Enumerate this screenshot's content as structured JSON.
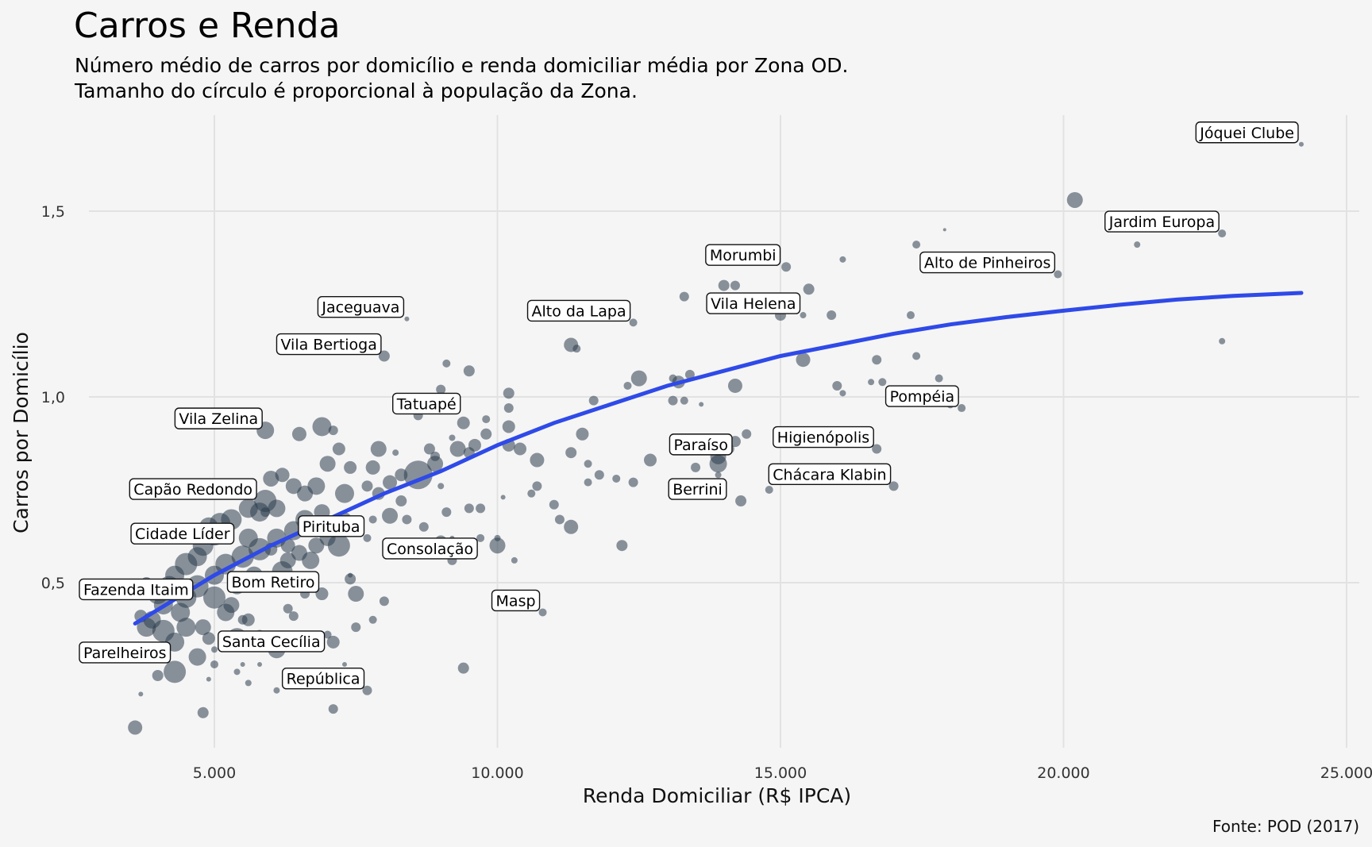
{
  "title": "Carros e Renda",
  "subtitle_line1": "Número médio de carros por domicílio e renda domiciliar média por Zona OD.",
  "subtitle_line2": "Tamanho do círculo é proporcional à população da Zona.",
  "caption": "Fonte: POD (2017)",
  "colors": {
    "points": "#2b3d4d",
    "trend": "#2f4ae8",
    "background": "#f5f5f5",
    "grid": "#e2e2e2"
  },
  "chart_data": {
    "type": "scatter",
    "title": "Carros e Renda",
    "xlabel": "Renda Domiciliar (R$ IPCA)",
    "ylabel": "Carros por Domicílio",
    "xlim": [
      2500,
      25200
    ],
    "ylim": [
      0.05,
      1.75
    ],
    "x_ticks": [
      5000,
      10000,
      15000,
      20000,
      25000
    ],
    "x_tick_labels": [
      "5.000",
      "10.000",
      "15.000",
      "20.000",
      "25.000"
    ],
    "y_ticks": [
      0.5,
      1.0,
      1.5
    ],
    "y_tick_labels": [
      "0,5",
      "1,0",
      "1,5"
    ],
    "grid": true,
    "size_encoding": "população da Zona",
    "labels": [
      {
        "text": "Jóquei Clube",
        "x": 24200,
        "y": 1.68
      },
      {
        "text": "Jardim Europa",
        "x": 22800,
        "y": 1.44
      },
      {
        "text": "Alto de Pinheiros",
        "x": 19900,
        "y": 1.33
      },
      {
        "text": "Morumbi",
        "x": 15050,
        "y": 1.35
      },
      {
        "text": "Vila Helena",
        "x": 15400,
        "y": 1.22
      },
      {
        "text": "Alto da Lapa",
        "x": 12400,
        "y": 1.2
      },
      {
        "text": "Jaceguava",
        "x": 8400,
        "y": 1.21
      },
      {
        "text": "Vila Bertioga",
        "x": 8000,
        "y": 1.11
      },
      {
        "text": "Pompéia",
        "x": 18200,
        "y": 0.97
      },
      {
        "text": "Tatuapé",
        "x": 9400,
        "y": 0.95
      },
      {
        "text": "Vila Zelina",
        "x": 5900,
        "y": 0.91
      },
      {
        "text": "Paraíso",
        "x": 14200,
        "y": 0.84
      },
      {
        "text": "Higienópolis",
        "x": 16700,
        "y": 0.86
      },
      {
        "text": "Chácara Klabin",
        "x": 17000,
        "y": 0.76
      },
      {
        "text": "Capão Redondo",
        "x": 5800,
        "y": 0.72
      },
      {
        "text": "Berrini",
        "x": 14100,
        "y": 0.72
      },
      {
        "text": "Cidade Líder",
        "x": 5400,
        "y": 0.6
      },
      {
        "text": "Pirituba",
        "x": 7700,
        "y": 0.62
      },
      {
        "text": "Consolação",
        "x": 9700,
        "y": 0.56
      },
      {
        "text": "Bom Retiro",
        "x": 6900,
        "y": 0.47
      },
      {
        "text": "Fazenda Itaim",
        "x": 4600,
        "y": 0.45
      },
      {
        "text": "Masp",
        "x": 10800,
        "y": 0.42
      },
      {
        "text": "Parelheiros",
        "x": 4000,
        "y": 0.28
      },
      {
        "text": "Santa Cecília",
        "x": 7000,
        "y": 0.31
      },
      {
        "text": "República",
        "x": 7700,
        "y": 0.21
      }
    ],
    "points": [
      [
        24200,
        1.68,
        3
      ],
      [
        22800,
        1.44,
        5
      ],
      [
        22800,
        1.15,
        4
      ],
      [
        21300,
        1.41,
        4
      ],
      [
        21200,
        1.47,
        2
      ],
      [
        20200,
        1.53,
        10
      ],
      [
        19900,
        1.33,
        5
      ],
      [
        19100,
        1.36,
        3
      ],
      [
        17900,
        1.45,
        2
      ],
      [
        17400,
        1.41,
        5
      ],
      [
        17400,
        1.11,
        5
      ],
      [
        17800,
        1.05,
        5
      ],
      [
        18000,
        0.98,
        5
      ],
      [
        18200,
        0.97,
        5
      ],
      [
        17300,
        1.22,
        5
      ],
      [
        16700,
        1.1,
        6
      ],
      [
        16800,
        1.04,
        5
      ],
      [
        16600,
        1.04,
        4
      ],
      [
        16000,
        1.03,
        6
      ],
      [
        16100,
        1.01,
        4
      ],
      [
        16700,
        0.86,
        6
      ],
      [
        17000,
        0.76,
        6
      ],
      [
        16100,
        1.37,
        4
      ],
      [
        15500,
        1.29,
        7
      ],
      [
        15100,
        1.35,
        6
      ],
      [
        15000,
        1.22,
        7
      ],
      [
        15400,
        1.22,
        4
      ],
      [
        15900,
        1.22,
        6
      ],
      [
        15400,
        1.1,
        9
      ],
      [
        14200,
        1.3,
        6
      ],
      [
        14000,
        1.3,
        7
      ],
      [
        14200,
        1.03,
        9
      ],
      [
        14400,
        0.9,
        6
      ],
      [
        14200,
        0.88,
        7
      ],
      [
        14100,
        0.86,
        6
      ],
      [
        13900,
        0.84,
        10
      ],
      [
        13900,
        0.82,
        11
      ],
      [
        14300,
        0.72,
        7
      ],
      [
        14800,
        0.75,
        5
      ],
      [
        13900,
        0.79,
        4
      ],
      [
        13500,
        0.81,
        6
      ],
      [
        13300,
        1.27,
        6
      ],
      [
        13400,
        1.06,
        6
      ],
      [
        13100,
        1.05,
        5
      ],
      [
        13200,
        1.04,
        8
      ],
      [
        13300,
        0.99,
        5
      ],
      [
        13100,
        0.99,
        6
      ],
      [
        13600,
        0.98,
        3
      ],
      [
        12500,
        1.05,
        10
      ],
      [
        12300,
        1.03,
        5
      ],
      [
        12400,
        1.2,
        5
      ],
      [
        12700,
        0.83,
        8
      ],
      [
        12400,
        0.77,
        6
      ],
      [
        12100,
        0.78,
        5
      ],
      [
        11800,
        0.79,
        6
      ],
      [
        11700,
        0.99,
        6
      ],
      [
        11300,
        1.14,
        9
      ],
      [
        11400,
        1.13,
        5
      ],
      [
        11500,
        0.9,
        8
      ],
      [
        11300,
        0.85,
        7
      ],
      [
        11600,
        0.82,
        5
      ],
      [
        11000,
        0.71,
        6
      ],
      [
        11100,
        0.67,
        6
      ],
      [
        11300,
        0.65,
        9
      ],
      [
        11600,
        0.77,
        5
      ],
      [
        12200,
        0.6,
        7
      ],
      [
        10800,
        0.42,
        5
      ],
      [
        10700,
        0.83,
        9
      ],
      [
        10400,
        0.86,
        8
      ],
      [
        10700,
        0.76,
        6
      ],
      [
        10600,
        0.74,
        5
      ],
      [
        10200,
        1.01,
        7
      ],
      [
        10200,
        0.97,
        6
      ],
      [
        10200,
        0.92,
        8
      ],
      [
        10200,
        0.87,
        8
      ],
      [
        9800,
        0.9,
        7
      ],
      [
        9800,
        0.94,
        5
      ],
      [
        9500,
        1.07,
        7
      ],
      [
        9600,
        0.87,
        8
      ],
      [
        9500,
        0.85,
        7
      ],
      [
        9400,
        0.93,
        8
      ],
      [
        9300,
        0.86,
        10
      ],
      [
        9200,
        0.89,
        4
      ],
      [
        9100,
        1.09,
        5
      ],
      [
        9000,
        1.02,
        6
      ],
      [
        8900,
        0.82,
        10
      ],
      [
        8900,
        0.84,
        6
      ],
      [
        8800,
        0.86,
        7
      ],
      [
        8600,
        0.79,
        18
      ],
      [
        8600,
        0.95,
        6
      ],
      [
        8400,
        1.21,
        3
      ],
      [
        8300,
        0.79,
        8
      ],
      [
        8300,
        0.72,
        7
      ],
      [
        8100,
        0.77,
        9
      ],
      [
        8100,
        0.68,
        10
      ],
      [
        8000,
        1.11,
        7
      ],
      [
        7900,
        0.86,
        10
      ],
      [
        7900,
        0.74,
        8
      ],
      [
        7800,
        0.67,
        5
      ],
      [
        7700,
        0.62,
        5
      ],
      [
        8400,
        0.67,
        6
      ],
      [
        8700,
        0.65,
        6
      ],
      [
        9000,
        0.61,
        8
      ],
      [
        9100,
        0.69,
        6
      ],
      [
        9200,
        0.62,
        3
      ],
      [
        9200,
        0.56,
        6
      ],
      [
        9500,
        0.7,
        6
      ],
      [
        9700,
        0.7,
        6
      ],
      [
        9700,
        0.62,
        5
      ],
      [
        10000,
        0.6,
        10
      ],
      [
        10000,
        0.62,
        4
      ],
      [
        10300,
        0.56,
        4
      ],
      [
        10100,
        0.73,
        3
      ],
      [
        9400,
        0.27,
        7
      ],
      [
        7700,
        0.21,
        6
      ],
      [
        7100,
        0.16,
        6
      ],
      [
        7500,
        0.38,
        6
      ],
      [
        7800,
        0.4,
        5
      ],
      [
        8000,
        0.45,
        6
      ],
      [
        7500,
        0.47,
        10
      ],
      [
        7400,
        0.51,
        7
      ],
      [
        7200,
        0.6,
        14
      ],
      [
        7000,
        0.62,
        10
      ],
      [
        7100,
        0.34,
        8
      ],
      [
        7000,
        0.36,
        5
      ],
      [
        6900,
        0.47,
        8
      ],
      [
        6600,
        0.47,
        6
      ],
      [
        6400,
        0.41,
        6
      ],
      [
        6300,
        0.43,
        6
      ],
      [
        6100,
        0.49,
        5
      ],
      [
        6500,
        0.33,
        5
      ],
      [
        6100,
        0.32,
        11
      ],
      [
        6400,
        0.34,
        6
      ],
      [
        6100,
        0.21,
        4
      ],
      [
        5800,
        0.28,
        3
      ],
      [
        5800,
        0.36,
        6
      ],
      [
        5600,
        0.4,
        8
      ],
      [
        5900,
        0.91,
        11
      ],
      [
        6500,
        0.9,
        9
      ],
      [
        6900,
        0.92,
        12
      ],
      [
        7100,
        0.91,
        6
      ],
      [
        7200,
        0.86,
        8
      ],
      [
        7000,
        0.82,
        10
      ],
      [
        7400,
        0.81,
        8
      ],
      [
        7800,
        0.81,
        9
      ],
      [
        7700,
        0.76,
        7
      ],
      [
        7300,
        0.74,
        12
      ],
      [
        6800,
        0.76,
        11
      ],
      [
        6600,
        0.74,
        10
      ],
      [
        6400,
        0.76,
        10
      ],
      [
        6200,
        0.79,
        9
      ],
      [
        6000,
        0.78,
        10
      ],
      [
        5900,
        0.72,
        14
      ],
      [
        5600,
        0.7,
        12
      ],
      [
        5300,
        0.67,
        13
      ],
      [
        5100,
        0.66,
        13
      ],
      [
        5000,
        0.63,
        14
      ],
      [
        4900,
        0.65,
        12
      ],
      [
        4800,
        0.6,
        13
      ],
      [
        4700,
        0.57,
        12
      ],
      [
        4500,
        0.55,
        14
      ],
      [
        4300,
        0.52,
        12
      ],
      [
        4200,
        0.49,
        13
      ],
      [
        4000,
        0.47,
        13
      ],
      [
        4100,
        0.44,
        12
      ],
      [
        3900,
        0.4,
        11
      ],
      [
        3800,
        0.38,
        12
      ],
      [
        3700,
        0.41,
        8
      ],
      [
        3800,
        0.5,
        7
      ],
      [
        4100,
        0.37,
        14
      ],
      [
        4300,
        0.34,
        12
      ],
      [
        4500,
        0.38,
        12
      ],
      [
        4700,
        0.3,
        11
      ],
      [
        4800,
        0.38,
        10
      ],
      [
        4900,
        0.35,
        8
      ],
      [
        4300,
        0.26,
        14
      ],
      [
        4000,
        0.25,
        7
      ],
      [
        3600,
        0.11,
        9
      ],
      [
        3700,
        0.2,
        3
      ],
      [
        4800,
        0.15,
        7
      ],
      [
        5000,
        0.28,
        5
      ],
      [
        5000,
        0.32,
        4
      ],
      [
        5300,
        0.44,
        10
      ],
      [
        5400,
        0.49,
        10
      ],
      [
        5400,
        0.35,
        13
      ],
      [
        5500,
        0.4,
        6
      ],
      [
        5300,
        0.33,
        5
      ],
      [
        5400,
        0.26,
        4
      ],
      [
        5600,
        0.23,
        4
      ],
      [
        5700,
        0.52,
        11
      ],
      [
        6000,
        0.5,
        12
      ],
      [
        6200,
        0.53,
        13
      ],
      [
        6300,
        0.56,
        10
      ],
      [
        6500,
        0.58,
        10
      ],
      [
        6700,
        0.56,
        11
      ],
      [
        6800,
        0.6,
        10
      ],
      [
        6400,
        0.64,
        12
      ],
      [
        6100,
        0.62,
        12
      ],
      [
        5800,
        0.59,
        14
      ],
      [
        5500,
        0.57,
        14
      ],
      [
        5200,
        0.55,
        13
      ],
      [
        5000,
        0.52,
        12
      ],
      [
        4700,
        0.49,
        14
      ],
      [
        4500,
        0.46,
        13
      ],
      [
        4400,
        0.42,
        12
      ],
      [
        5000,
        0.46,
        14
      ],
      [
        5200,
        0.42,
        11
      ],
      [
        5800,
        0.69,
        12
      ],
      [
        6100,
        0.7,
        11
      ],
      [
        6600,
        0.67,
        12
      ],
      [
        6900,
        0.69,
        10
      ],
      [
        7300,
        0.67,
        9
      ],
      [
        6000,
        0.59,
        8
      ],
      [
        5600,
        0.62,
        12
      ],
      [
        6300,
        0.6,
        9
      ],
      [
        5500,
        0.28,
        3
      ],
      [
        5900,
        0.69,
        6
      ],
      [
        4900,
        0.24,
        3
      ],
      [
        8200,
        0.85,
        4
      ],
      [
        9000,
        0.76,
        4
      ],
      [
        7300,
        0.28,
        3
      ],
      [
        7400,
        0.52,
        3
      ]
    ],
    "trend": [
      [
        3600,
        0.39
      ],
      [
        5000,
        0.52
      ],
      [
        6000,
        0.6
      ],
      [
        7000,
        0.67
      ],
      [
        8000,
        0.74
      ],
      [
        9000,
        0.8
      ],
      [
        10000,
        0.87
      ],
      [
        11000,
        0.93
      ],
      [
        12000,
        0.98
      ],
      [
        13000,
        1.03
      ],
      [
        14000,
        1.07
      ],
      [
        15000,
        1.11
      ],
      [
        16000,
        1.14
      ],
      [
        17000,
        1.17
      ],
      [
        18000,
        1.195
      ],
      [
        19000,
        1.215
      ],
      [
        20000,
        1.232
      ],
      [
        21000,
        1.248
      ],
      [
        22000,
        1.262
      ],
      [
        23000,
        1.272
      ],
      [
        24200,
        1.28
      ]
    ]
  }
}
